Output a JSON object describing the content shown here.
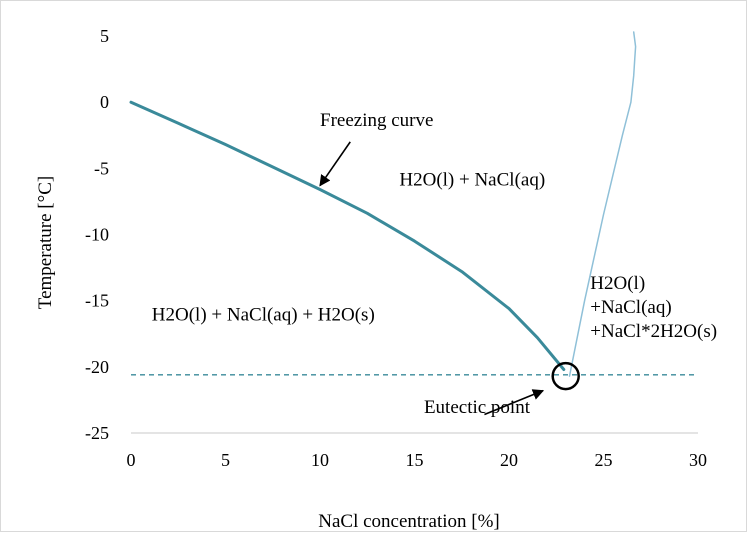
{
  "chart_data": {
    "type": "line",
    "title": "",
    "xlabel": "NaCl concentration [%]",
    "ylabel": "Temperature [°C]",
    "xlim": [
      0,
      30
    ],
    "ylim": [
      -25,
      5
    ],
    "x_ticks": [
      0,
      5,
      10,
      15,
      20,
      25,
      30
    ],
    "y_ticks": [
      5,
      0,
      -5,
      -10,
      -15,
      -20,
      -25
    ],
    "grid": false,
    "legend": "none",
    "series": [
      {
        "color": "#3a8a9a",
        "x": [
          0,
          2.5,
          5,
          7.5,
          10,
          12.5,
          15,
          17.5,
          20,
          21.5,
          22.9
        ],
        "y": [
          0,
          -1.6,
          -3.2,
          -4.9,
          -6.6,
          -8.4,
          -10.5,
          -12.8,
          -15.6,
          -17.8,
          -20.2
        ]
      },
      {
        "color": "#8fc0d8",
        "x": [
          23.2,
          24.0,
          25.0,
          26.0,
          26.45,
          26.6,
          26.65,
          26.7,
          26.6
        ],
        "y": [
          -20.7,
          -15.0,
          -8.5,
          -2.5,
          0,
          2.0,
          3.2,
          4.2,
          5.3
        ]
      },
      {
        "color": "#3a8a9a",
        "x": [
          0,
          30
        ],
        "y": [
          -20.6,
          -20.6
        ],
        "dashed": true
      }
    ],
    "annotations": [
      {
        "text": "Freezing curve",
        "x": 10,
        "y": -1.8,
        "arrow_from": [
          11.6,
          -3.0
        ],
        "arrow_to": [
          10.0,
          -6.3
        ]
      },
      {
        "text": "Eutectic point",
        "x": 15.5,
        "y": -23.5,
        "arrow_from": [
          18.7,
          -23.6
        ],
        "arrow_to": [
          21.8,
          -21.8
        ]
      },
      {
        "text": "H2O(l) + NaCl(aq)",
        "x": 14.2,
        "y": -6.3
      },
      {
        "text": "H2O(l) + NaCl(aq) + H2O(s)",
        "x": 1.1,
        "y": -16.5
      },
      {
        "lines": [
          "H2O(l)",
          "+NaCl(aq)",
          "+NaCl*2H2O(s)"
        ],
        "x": 24.3,
        "y": -14.1
      }
    ],
    "eutectic_marker": {
      "x": 23.0,
      "y": -20.7
    }
  }
}
